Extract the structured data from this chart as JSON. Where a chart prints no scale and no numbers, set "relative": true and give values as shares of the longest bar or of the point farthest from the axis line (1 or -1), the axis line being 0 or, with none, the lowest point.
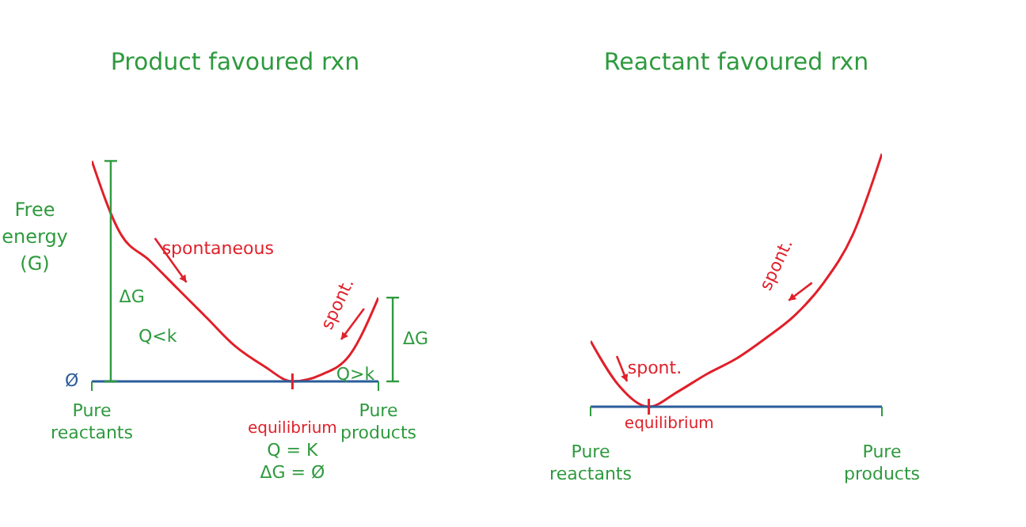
{
  "chart_data": [
    {
      "type": "line",
      "title": "Product favoured rxn",
      "ylabel": "Free energy (G)",
      "relative": true,
      "color": "#e0202a",
      "categories": [
        "Pure reactants",
        null,
        null,
        null,
        null,
        null,
        null,
        null,
        null,
        null,
        "Pure products"
      ],
      "values": [
        1.0,
        0.67,
        0.55,
        0.42,
        0.29,
        0.16,
        0.07,
        0.0,
        0.03,
        0.12,
        0.38
      ],
      "annotations": [
        "Ø",
        "spontaneous",
        "spont.",
        "ΔG",
        "Q<k",
        "Q>k",
        "ΔG",
        "equilibrium",
        "Q = K",
        "ΔG = Ø"
      ],
      "marker": "none"
    },
    {
      "type": "line",
      "title": "Reactant favoured rxn",
      "relative": true,
      "color": "#e0202a",
      "categories": [
        "Pure reactants",
        null,
        null,
        null,
        null,
        null,
        null,
        null,
        null,
        null,
        "Pure products"
      ],
      "values": [
        0.26,
        0.08,
        0.0,
        0.06,
        0.13,
        0.19,
        0.27,
        0.36,
        0.49,
        0.68,
        1.0
      ],
      "annotations": [
        "spont.",
        "spont.",
        "equilibrium"
      ],
      "marker": "none"
    }
  ]
}
